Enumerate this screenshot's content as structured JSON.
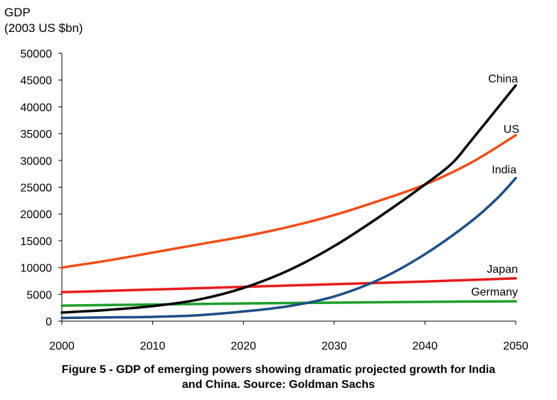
{
  "chart_data": {
    "type": "line",
    "ylabel_line1": "GDP",
    "ylabel_line2": "(2003 US $bn)",
    "xlim": [
      2000,
      2050
    ],
    "ylim": [
      0,
      50000
    ],
    "xticks": [
      2000,
      2010,
      2020,
      2030,
      2040,
      2050
    ],
    "yticks": [
      0,
      5000,
      10000,
      15000,
      20000,
      25000,
      30000,
      35000,
      40000,
      45000,
      50000
    ],
    "grid": false,
    "series": [
      {
        "name": "China",
        "color": "#000000",
        "x": [
          2000,
          2005,
          2010,
          2015,
          2020,
          2025,
          2030,
          2035,
          2040,
          2043,
          2045,
          2050
        ],
        "y": [
          1600,
          2100,
          2800,
          4000,
          6200,
          9500,
          14000,
          19500,
          25500,
          29500,
          33500,
          44000
        ]
      },
      {
        "name": "US",
        "color": "#f04e1a",
        "x": [
          2000,
          2005,
          2010,
          2015,
          2020,
          2025,
          2030,
          2035,
          2040,
          2045,
          2050
        ],
        "y": [
          10000,
          11300,
          12800,
          14300,
          15800,
          17600,
          19800,
          22500,
          25500,
          29500,
          34700
        ]
      },
      {
        "name": "India",
        "color": "#1f4e85",
        "x": [
          2000,
          2005,
          2010,
          2015,
          2020,
          2025,
          2030,
          2035,
          2040,
          2045,
          2048,
          2050
        ],
        "y": [
          600,
          700,
          800,
          1100,
          1800,
          2800,
          4600,
          7800,
          12500,
          18500,
          23000,
          26700
        ]
      },
      {
        "name": "Japan",
        "color": "#e81c1c",
        "x": [
          2000,
          2010,
          2020,
          2030,
          2040,
          2050
        ],
        "y": [
          5400,
          5900,
          6400,
          6900,
          7400,
          8000
        ]
      },
      {
        "name": "Germany",
        "color": "#1e9e2a",
        "x": [
          2000,
          2010,
          2020,
          2030,
          2040,
          2050
        ],
        "y": [
          2900,
          3100,
          3300,
          3450,
          3600,
          3700
        ]
      }
    ]
  },
  "caption": {
    "line1": "Figure 5 - GDP of emerging powers showing dramatic projected growth for India",
    "line2": "and China. Source: Goldman Sachs"
  }
}
